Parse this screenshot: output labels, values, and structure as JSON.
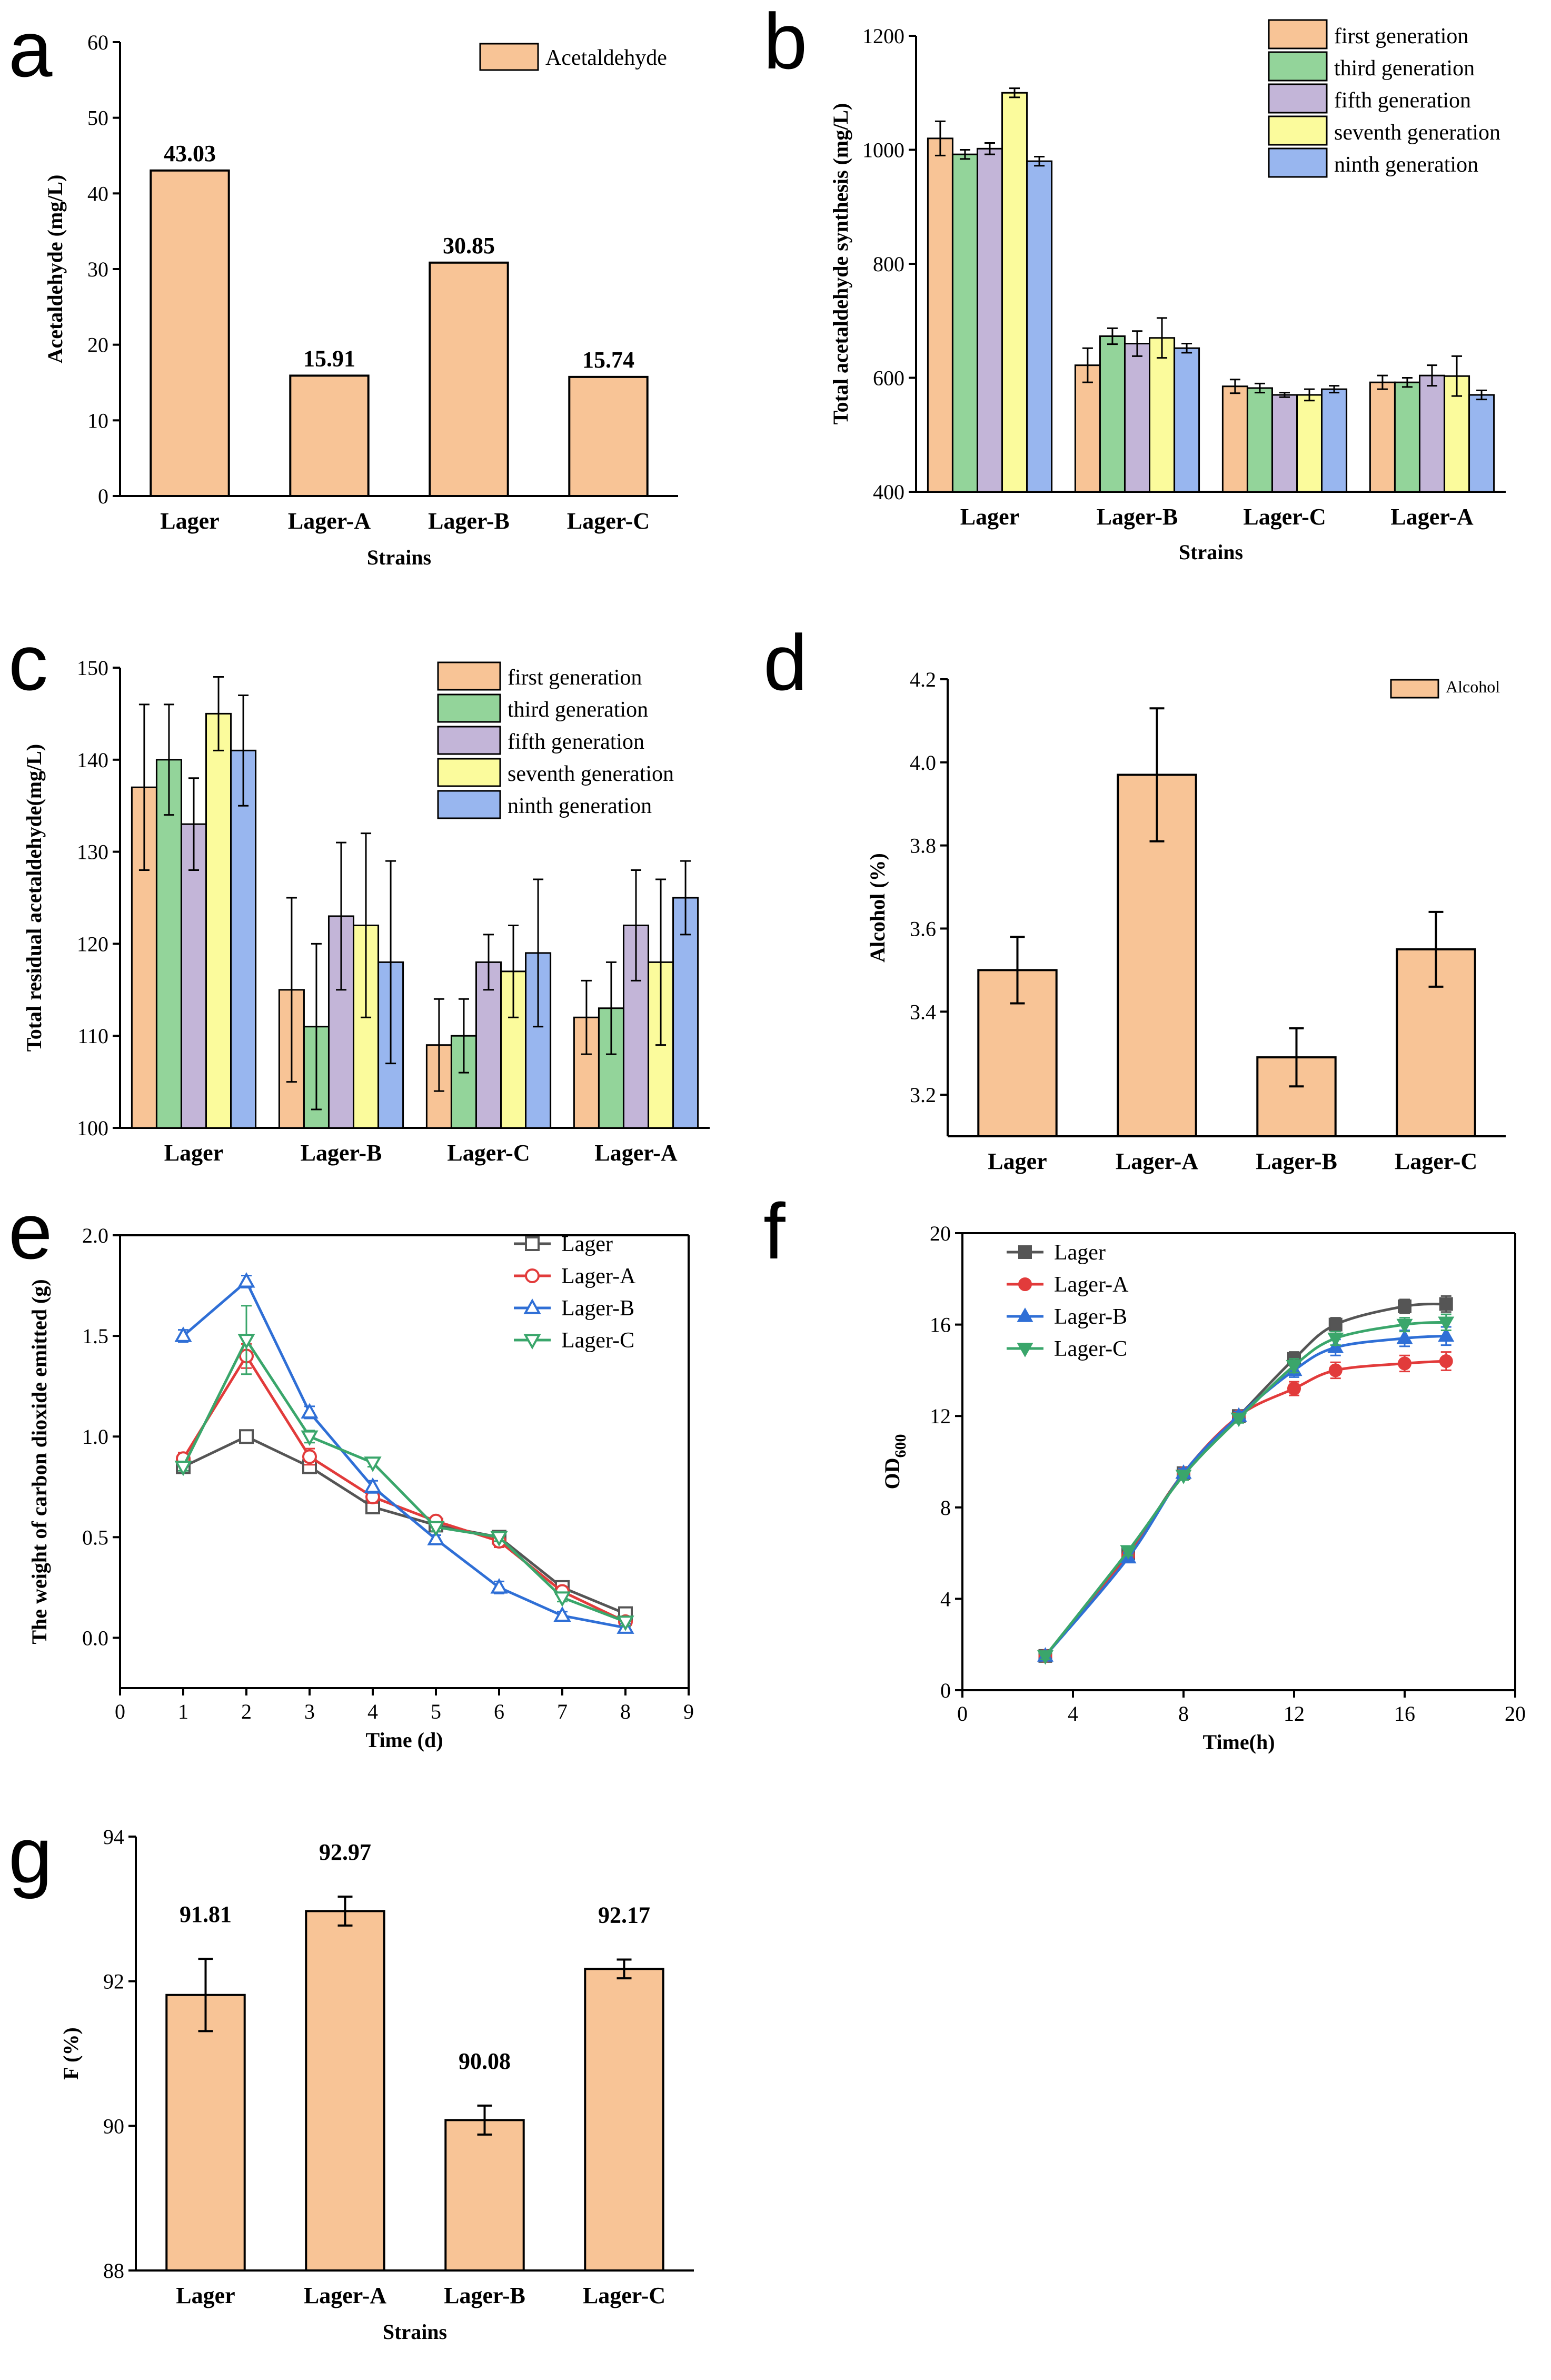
{
  "colors": {
    "bar": "#f8c496",
    "first": "#f8c496",
    "third": "#93d49a",
    "fifth": "#c3b5d8",
    "seventh": "#fbfb9c",
    "ninth": "#98b6ef",
    "lager": "#555555",
    "lagerA": "#e23b3b",
    "lagerB": "#2f6fd6",
    "lagerC": "#3aa66b"
  },
  "chart_data": [
    {
      "id": "a",
      "letter": "a",
      "type": "bar",
      "title": "",
      "xlabel": "Strains",
      "ylabel": "Acetaldehyde (mg/L)",
      "categories": [
        "Lager",
        "Lager-A",
        "Lager-B",
        "Lager-C"
      ],
      "values": [
        43.03,
        15.91,
        30.85,
        15.74
      ],
      "value_labels": [
        "43.03",
        "15.91",
        "30.85",
        "15.74"
      ],
      "ylim": [
        0,
        60
      ],
      "yticks": [
        0,
        10,
        20,
        30,
        40,
        50,
        60
      ],
      "legend": [
        "Acetaldehyde"
      ]
    },
    {
      "id": "b",
      "letter": "b",
      "type": "bar",
      "xlabel": "Strains",
      "ylabel": "Total acetaldehyde synthesis (mg/L)",
      "categories": [
        "Lager",
        "Lager-B",
        "Lager-C",
        "Lager-A"
      ],
      "series": [
        {
          "name": "first generation",
          "values": [
            1020,
            622,
            585,
            592
          ],
          "errors": [
            30,
            30,
            12,
            12
          ]
        },
        {
          "name": "third generation",
          "values": [
            992,
            673,
            582,
            592
          ],
          "errors": [
            8,
            14,
            8,
            8
          ]
        },
        {
          "name": "fifth generation",
          "values": [
            1002,
            660,
            570,
            604
          ],
          "errors": [
            10,
            22,
            4,
            18
          ]
        },
        {
          "name": "seventh generation",
          "values": [
            1100,
            670,
            570,
            603
          ],
          "errors": [
            8,
            35,
            10,
            35
          ]
        },
        {
          "name": "ninth generation",
          "values": [
            980,
            652,
            580,
            570
          ],
          "errors": [
            8,
            8,
            6,
            8
          ]
        }
      ],
      "ylim": [
        400,
        1200
      ],
      "yticks": [
        400,
        600,
        800,
        1000,
        1200
      ]
    },
    {
      "id": "c",
      "letter": "c",
      "type": "bar",
      "xlabel": "",
      "ylabel": "Total residual acetaldehyde(mg/L)",
      "categories": [
        "Lager",
        "Lager-B",
        "Lager-C",
        "Lager-A"
      ],
      "series": [
        {
          "name": "first generation",
          "values": [
            137,
            115,
            109,
            112
          ],
          "errors": [
            9,
            10,
            5,
            4
          ]
        },
        {
          "name": "third generation",
          "values": [
            140,
            111,
            110,
            113
          ],
          "errors": [
            6,
            9,
            4,
            5
          ]
        },
        {
          "name": "fifth generation",
          "values": [
            133,
            123,
            118,
            122
          ],
          "errors": [
            5,
            8,
            3,
            6
          ]
        },
        {
          "name": "seventh generation",
          "values": [
            145,
            122,
            117,
            118
          ],
          "errors": [
            4,
            10,
            5,
            9
          ]
        },
        {
          "name": "ninth generation",
          "values": [
            141,
            118,
            119,
            125
          ],
          "errors": [
            6,
            11,
            8,
            4
          ]
        }
      ],
      "ylim": [
        100,
        150
      ],
      "yticks": [
        100,
        110,
        120,
        130,
        140,
        150
      ]
    },
    {
      "id": "d",
      "letter": "d",
      "type": "bar",
      "xlabel": "",
      "ylabel": "Alcohol (%)",
      "categories": [
        "Lager",
        "Lager-A",
        "Lager-B",
        "Lager-C"
      ],
      "values": [
        3.5,
        3.97,
        3.29,
        3.55
      ],
      "errors": [
        0.08,
        0.16,
        0.07,
        0.09
      ],
      "ylim": [
        3.1,
        4.2
      ],
      "yticks": [
        3.2,
        3.4,
        3.6,
        3.8,
        4.0,
        4.2
      ],
      "ytick_labels": [
        "3.2",
        "3.4",
        "3.6",
        "3.8",
        "4.0",
        "4.2"
      ],
      "legend": [
        "Alcohol"
      ]
    },
    {
      "id": "e",
      "letter": "e",
      "type": "line",
      "xlabel": "Time (d)",
      "ylabel": "The weight of carbon dioxide emitted (g)",
      "x": [
        1,
        2,
        3,
        4,
        5,
        6,
        7,
        8
      ],
      "series": [
        {
          "name": "Lager",
          "values": [
            0.85,
            1.0,
            0.85,
            0.65,
            0.56,
            0.5,
            0.25,
            0.12
          ],
          "errors": [
            0.02,
            0.03,
            0.03,
            0.02,
            0.02,
            0.02,
            0.02,
            0.02
          ]
        },
        {
          "name": "Lager-A",
          "values": [
            0.89,
            1.4,
            0.9,
            0.7,
            0.58,
            0.48,
            0.23,
            0.08
          ],
          "errors": [
            0.03,
            0.06,
            0.04,
            0.03,
            0.02,
            0.03,
            0.02,
            0.02
          ]
        },
        {
          "name": "Lager-B",
          "values": [
            1.5,
            1.77,
            1.12,
            0.75,
            0.49,
            0.25,
            0.11,
            0.05
          ],
          "errors": [
            0.03,
            0.03,
            0.03,
            0.03,
            0.02,
            0.03,
            0.02,
            0.02
          ]
        },
        {
          "name": "Lager-C",
          "values": [
            0.85,
            1.48,
            1.0,
            0.87,
            0.55,
            0.5,
            0.2,
            0.08
          ],
          "errors": [
            0.02,
            0.17,
            0.03,
            0.02,
            0.02,
            0.02,
            0.02,
            0.02
          ]
        }
      ],
      "xlim": [
        0,
        9
      ],
      "ylim": [
        -0.25,
        2.0
      ],
      "xticks": [
        0,
        1,
        2,
        3,
        4,
        5,
        6,
        7,
        8,
        9
      ],
      "yticks": [
        0.0,
        0.5,
        1.0,
        1.5,
        2.0
      ],
      "ytick_labels": [
        "0.0",
        "0.5",
        "1.0",
        "1.5",
        "2.0"
      ]
    },
    {
      "id": "f",
      "letter": "f",
      "type": "line",
      "xlabel": "Time(h)",
      "ylabel": "OD600",
      "x": [
        3,
        6,
        8,
        10,
        12,
        13.5,
        16,
        17.5
      ],
      "series": [
        {
          "name": "Lager",
          "values": [
            1.5,
            6.0,
            9.5,
            12.0,
            14.5,
            16.0,
            16.8,
            16.9
          ],
          "errors": [
            0.15,
            0.2,
            0.2,
            0.2,
            0.3,
            0.3,
            0.3,
            0.35
          ]
        },
        {
          "name": "Lager-A",
          "values": [
            1.5,
            5.9,
            9.5,
            12.0,
            13.2,
            14.0,
            14.3,
            14.4
          ],
          "errors": [
            0.15,
            0.2,
            0.2,
            0.2,
            0.3,
            0.35,
            0.35,
            0.4
          ]
        },
        {
          "name": "Lager-B",
          "values": [
            1.5,
            5.8,
            9.5,
            12.0,
            14.0,
            15.0,
            15.4,
            15.5
          ],
          "errors": [
            0.15,
            0.2,
            0.2,
            0.2,
            0.3,
            0.35,
            0.35,
            0.4
          ]
        },
        {
          "name": "Lager-C",
          "values": [
            1.5,
            6.1,
            9.4,
            11.9,
            14.2,
            15.4,
            16.0,
            16.1
          ],
          "errors": [
            0.15,
            0.2,
            0.2,
            0.2,
            0.3,
            0.3,
            0.3,
            0.35
          ]
        }
      ],
      "xlim": [
        0,
        20
      ],
      "ylim": [
        0,
        20
      ],
      "xticks": [
        0,
        4,
        8,
        12,
        16,
        20
      ],
      "yticks": [
        0,
        4,
        8,
        12,
        16,
        20
      ]
    },
    {
      "id": "g",
      "letter": "g",
      "type": "bar",
      "xlabel": "Strains",
      "ylabel": "F (%)",
      "categories": [
        "Lager",
        "Lager-A",
        "Lager-B",
        "Lager-C"
      ],
      "values": [
        91.81,
        92.97,
        90.08,
        92.17
      ],
      "value_labels": [
        "91.81",
        "92.97",
        "90.08",
        "92.17"
      ],
      "errors": [
        0.5,
        0.2,
        0.2,
        0.13
      ],
      "ylim": [
        88,
        94
      ],
      "yticks": [
        88,
        90,
        92,
        94
      ]
    }
  ]
}
